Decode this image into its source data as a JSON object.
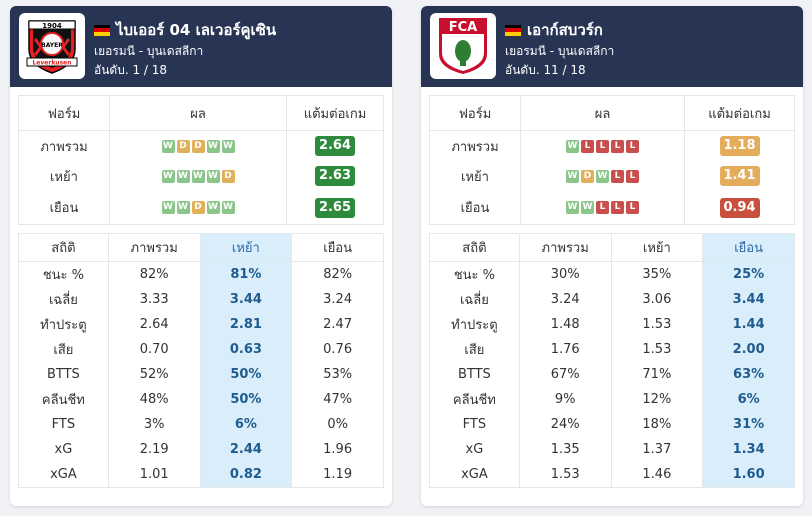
{
  "teams": [
    {
      "name": "ไบเออร์ 04 เลเวอร์คูเซิน",
      "league": "เยอรมนี - บุนเดสลีกา",
      "rank": "อันดับ. 1 / 18",
      "logo_text_top": "1904",
      "logo_text": "BAYER",
      "logo_text_bottom": "Leverkusen",
      "form_headers": [
        "ฟอร์ม",
        "ผล",
        "แต้มต่อเกม"
      ],
      "form_rows": [
        {
          "label": "ภาพรวม",
          "results": [
            "W",
            "D",
            "D",
            "W",
            "W"
          ],
          "ppg": "2.64",
          "ppg_color": "#2e8b3e"
        },
        {
          "label": "เหย้า",
          "results": [
            "W",
            "W",
            "W",
            "W",
            "D"
          ],
          "ppg": "2.63",
          "ppg_color": "#2e8b3e"
        },
        {
          "label": "เยือน",
          "results": [
            "W",
            "W",
            "D",
            "W",
            "W"
          ],
          "ppg": "2.65",
          "ppg_color": "#2e8b3e"
        }
      ],
      "stats_headers": [
        "สถิติ",
        "ภาพรวม",
        "เหย้า",
        "เยือน"
      ],
      "highlight_col": 2,
      "stats_rows": [
        [
          "ชนะ %",
          "82%",
          "81%",
          "82%"
        ],
        [
          "เฉลี่ย",
          "3.33",
          "3.44",
          "3.24"
        ],
        [
          "ทำประตู",
          "2.64",
          "2.81",
          "2.47"
        ],
        [
          "เสีย",
          "0.70",
          "0.63",
          "0.76"
        ],
        [
          "BTTS",
          "52%",
          "50%",
          "53%"
        ],
        [
          "คลีนชีท",
          "48%",
          "50%",
          "47%"
        ],
        [
          "FTS",
          "3%",
          "6%",
          "0%"
        ],
        [
          "xG",
          "2.19",
          "2.44",
          "1.96"
        ],
        [
          "xGA",
          "1.01",
          "0.82",
          "1.19"
        ]
      ]
    },
    {
      "name": "เอาก์สบวร์ก",
      "league": "เยอรมนี - บุนเดสลีกา",
      "rank": "อันดับ. 11 / 18",
      "logo_text": "FCA",
      "form_headers": [
        "ฟอร์ม",
        "ผล",
        "แต้มต่อเกม"
      ],
      "form_rows": [
        {
          "label": "ภาพรวม",
          "results": [
            "W",
            "L",
            "L",
            "L",
            "L"
          ],
          "ppg": "1.18",
          "ppg_color": "#e4ad5c"
        },
        {
          "label": "เหย้า",
          "results": [
            "W",
            "D",
            "W",
            "L",
            "L"
          ],
          "ppg": "1.41",
          "ppg_color": "#e4ad5c"
        },
        {
          "label": "เยือน",
          "results": [
            "W",
            "W",
            "L",
            "L",
            "L"
          ],
          "ppg": "0.94",
          "ppg_color": "#c9503f"
        }
      ],
      "stats_headers": [
        "สถิติ",
        "ภาพรวม",
        "เหย้า",
        "เยือน"
      ],
      "highlight_col": 3,
      "stats_rows": [
        [
          "ชนะ %",
          "30%",
          "35%",
          "25%"
        ],
        [
          "เฉลี่ย",
          "3.24",
          "3.06",
          "3.44"
        ],
        [
          "ทำประตู",
          "1.48",
          "1.53",
          "1.44"
        ],
        [
          "เสีย",
          "1.76",
          "1.53",
          "2.00"
        ],
        [
          "BTTS",
          "67%",
          "71%",
          "63%"
        ],
        [
          "คลีนชีท",
          "9%",
          "12%",
          "6%"
        ],
        [
          "FTS",
          "24%",
          "18%",
          "31%"
        ],
        [
          "xG",
          "1.35",
          "1.37",
          "1.34"
        ],
        [
          "xGA",
          "1.53",
          "1.46",
          "1.60"
        ]
      ]
    }
  ]
}
